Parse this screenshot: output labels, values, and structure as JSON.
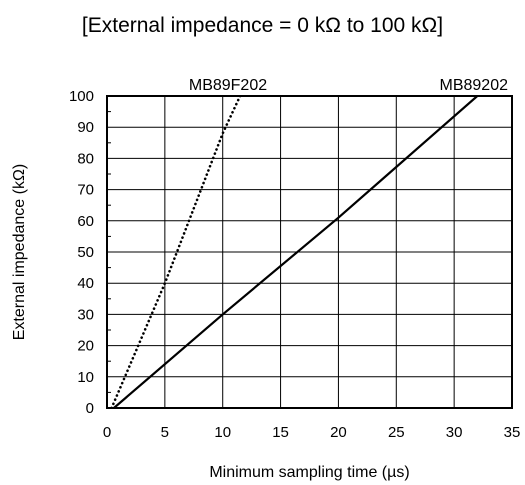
{
  "chart_data": {
    "type": "line",
    "title": "[External impedance = 0 kΩ to 100 kΩ]",
    "xlabel": "Minimum sampling time (µs)",
    "ylabel": "External impedance (kΩ)",
    "xlim": [
      0,
      35
    ],
    "ylim": [
      0,
      100
    ],
    "xticks": [
      "0",
      "5",
      "10",
      "15",
      "20",
      "25",
      "30",
      "35"
    ],
    "yticks": [
      "0",
      "10",
      "20",
      "30",
      "40",
      "50",
      "60",
      "70",
      "80",
      "90",
      "100"
    ],
    "grid": true,
    "series": [
      {
        "name": "MB89F202",
        "style": "dotted",
        "points": [
          [
            0.4,
            0
          ],
          [
            5,
            40
          ],
          [
            10,
            88
          ],
          [
            11.5,
            100
          ]
        ]
      },
      {
        "name": "MB89202",
        "style": "solid",
        "points": [
          [
            0.6,
            0
          ],
          [
            10,
            30
          ],
          [
            20,
            61
          ],
          [
            32,
            100
          ]
        ]
      }
    ]
  }
}
